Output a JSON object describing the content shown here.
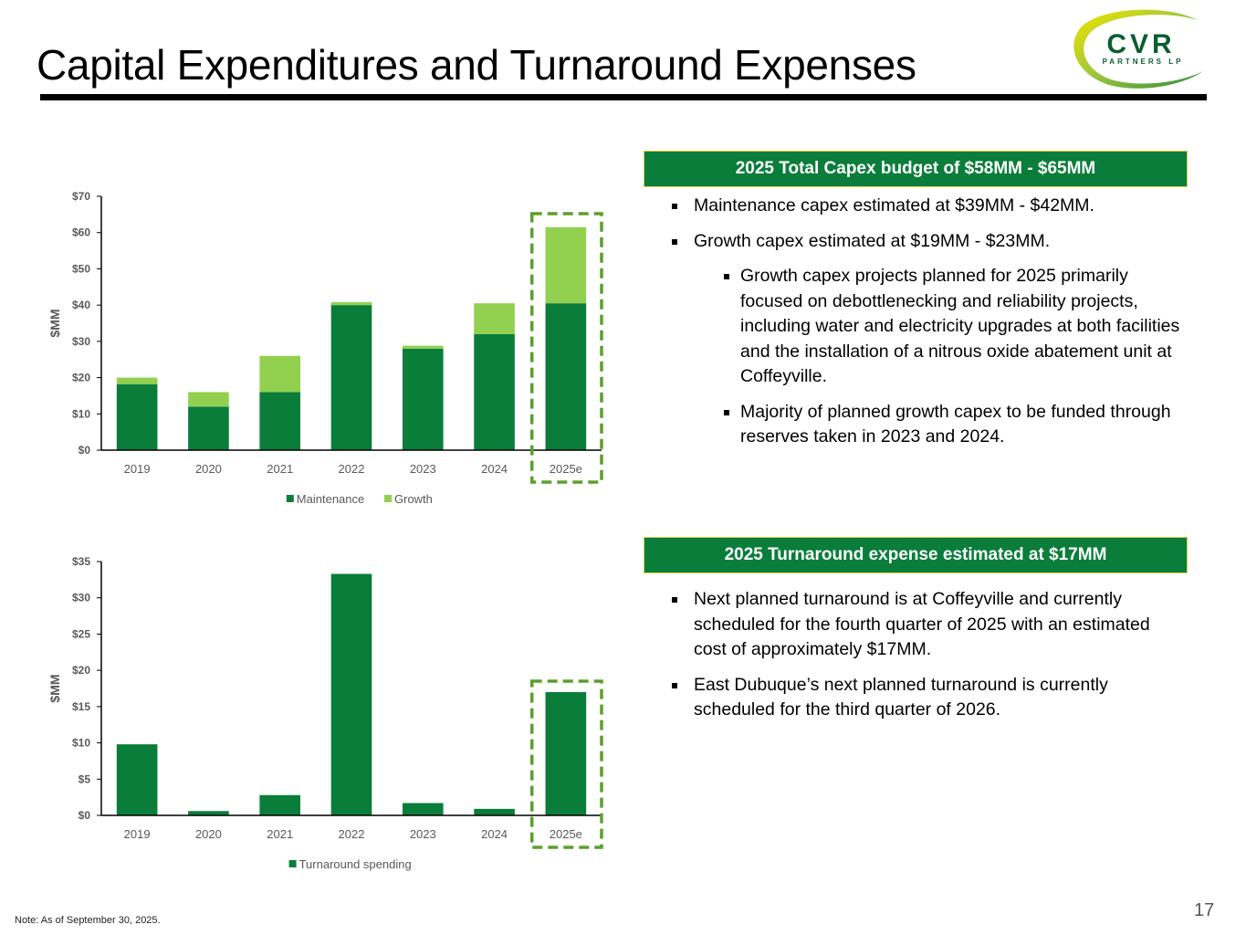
{
  "slide": {
    "title": "Capital Expenditures and Turnaround Expenses",
    "note": "Note:  As of September 30, 2025.",
    "page_number": "17",
    "accent_color": "#0a7d3a",
    "growth_color": "#92d050"
  },
  "logo": {
    "name": "CVR",
    "sub": "PARTNERS LP"
  },
  "capex_box": {
    "header": "2025 Total Capex budget of $58MM - $65MM",
    "bullets": [
      {
        "text": "Maintenance capex estimated at $39MM - $42MM.",
        "level": 1
      },
      {
        "text": "Growth capex estimated at $19MM - $23MM.",
        "level": 1
      },
      {
        "text": "Growth capex projects planned for 2025 primarily focused on debottlenecking and reliability projects, including water and electricity upgrades at both facilities and the installation of a nitrous oxide abatement unit at Coffeyville.",
        "level": 2
      },
      {
        "text": "Majority of planned growth capex to be funded through reserves taken in 2023 and 2024.",
        "level": 2
      }
    ]
  },
  "turnaround_box": {
    "header": "2025 Turnaround expense estimated at $17MM",
    "bullets": [
      {
        "text": "Next planned turnaround is at Coffeyville and currently scheduled for the fourth quarter of 2025 with an estimated cost of approximately $17MM.",
        "level": 1
      },
      {
        "text": "East Dubuque’s next planned turnaround is currently scheduled for the third quarter of 2026.",
        "level": 1
      }
    ]
  },
  "chart_data": [
    {
      "type": "bar",
      "stacked": true,
      "categories": [
        "2019",
        "2020",
        "2021",
        "2022",
        "2023",
        "2024",
        "2025e"
      ],
      "series": [
        {
          "name": "Maintenance",
          "values": [
            18.2,
            12.0,
            16.0,
            40.0,
            28.0,
            32.0,
            40.5
          ],
          "color": "#0a7d3a"
        },
        {
          "name": "Growth",
          "values": [
            1.8,
            4.0,
            10.0,
            0.8,
            0.8,
            8.5,
            21.0
          ],
          "color": "#92d050"
        }
      ],
      "ylabel": "$MM",
      "ylim": [
        0,
        70
      ],
      "yticks": [
        "$0",
        "$10",
        "$20",
        "$30",
        "$40",
        "$50",
        "$60",
        "$70"
      ],
      "highlight_category": "2025e",
      "legend": "bottom",
      "grid": false
    },
    {
      "type": "bar",
      "categories": [
        "2019",
        "2020",
        "2021",
        "2022",
        "2023",
        "2024",
        "2025e"
      ],
      "series": [
        {
          "name": "Turnaround spending",
          "values": [
            9.8,
            0.6,
            2.8,
            33.3,
            1.7,
            0.9,
            17.0
          ],
          "color": "#0a7d3a"
        }
      ],
      "ylabel": "$MM",
      "ylim": [
        0,
        35
      ],
      "yticks": [
        "$0",
        "$5",
        "$10",
        "$15",
        "$20",
        "$25",
        "$30",
        "$35"
      ],
      "highlight_category": "2025e",
      "legend": "bottom",
      "grid": false
    }
  ]
}
